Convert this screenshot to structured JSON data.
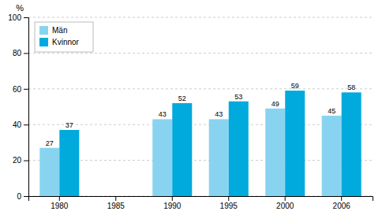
{
  "chart_data": {
    "type": "bar",
    "categories": [
      "1980",
      "1985",
      "1990",
      "1995",
      "2000",
      "2006"
    ],
    "series": [
      {
        "name": "Män",
        "color": "#88d4f0",
        "values": [
          27,
          null,
          43,
          43,
          49,
          45
        ]
      },
      {
        "name": "Kvinnor",
        "color": "#00aadd",
        "values": [
          37,
          null,
          52,
          53,
          59,
          58
        ]
      }
    ],
    "ylabel": "%",
    "ylim": [
      0,
      100
    ],
    "yticks": [
      0,
      20,
      40,
      60,
      80,
      100
    ],
    "grid": true,
    "legend": "upper left",
    "data_labels": true
  }
}
